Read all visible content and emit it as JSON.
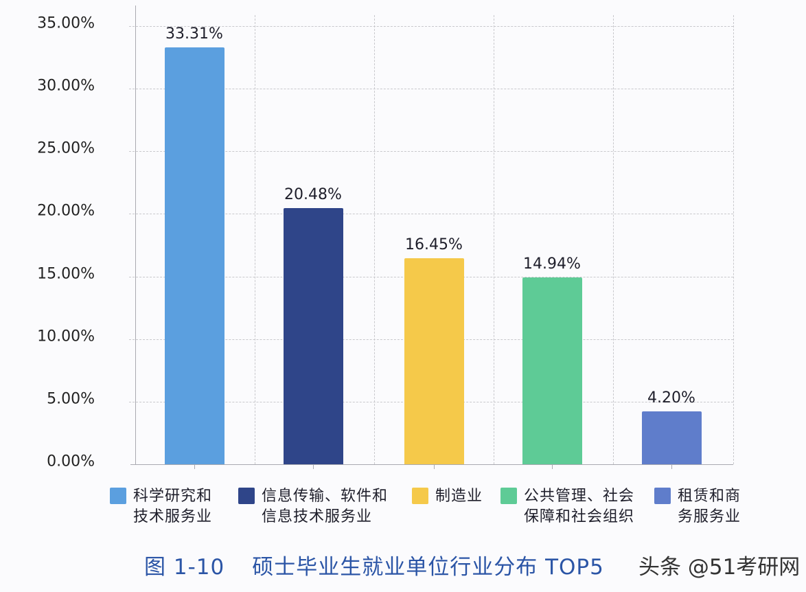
{
  "chart_data": {
    "type": "bar",
    "title": "图 1-10　硕士毕业生就业单位行业分布 TOP5",
    "xlabel": "",
    "ylabel": "",
    "ylim": [
      0,
      35
    ],
    "grid": true,
    "legend_position": "bottom",
    "yticks": [
      "0.00%",
      "5.00%",
      "10.00%",
      "15.00%",
      "20.00%",
      "25.00%",
      "30.00%",
      "35.00%"
    ],
    "categories": [
      "科学研究和技术服务业",
      "信息传输、软件和信息技术服务业",
      "制造业",
      "公共管理、社会保障和社会组织",
      "租赁和商务服务业"
    ],
    "values": [
      33.31,
      20.48,
      16.45,
      14.94,
      4.2
    ],
    "value_labels": [
      "33.31%",
      "20.48%",
      "16.45%",
      "14.94%",
      "4.20%"
    ],
    "colors": [
      "#5b9fdf",
      "#2f4589",
      "#f5c94a",
      "#5ecb96",
      "#5f7dcb"
    ]
  },
  "legend": [
    {
      "line1": "科学研究和",
      "line2": "技术服务业",
      "color": "#5b9fdf"
    },
    {
      "line1": "信息传输、软件和",
      "line2": "信息技术服务业",
      "color": "#2f4589"
    },
    {
      "line1": "制造业",
      "line2": "",
      "color": "#f5c94a"
    },
    {
      "line1": "公共管理、社会",
      "line2": "保障和社会组织",
      "color": "#5ecb96"
    },
    {
      "line1": "租赁和商",
      "line2": "务服务业",
      "color": "#5f7dcb"
    }
  ],
  "caption": {
    "figure_no": "图 1-10",
    "text": "硕士毕业生就业单位行业分布 TOP5"
  },
  "watermark": "头条 @51考研网"
}
